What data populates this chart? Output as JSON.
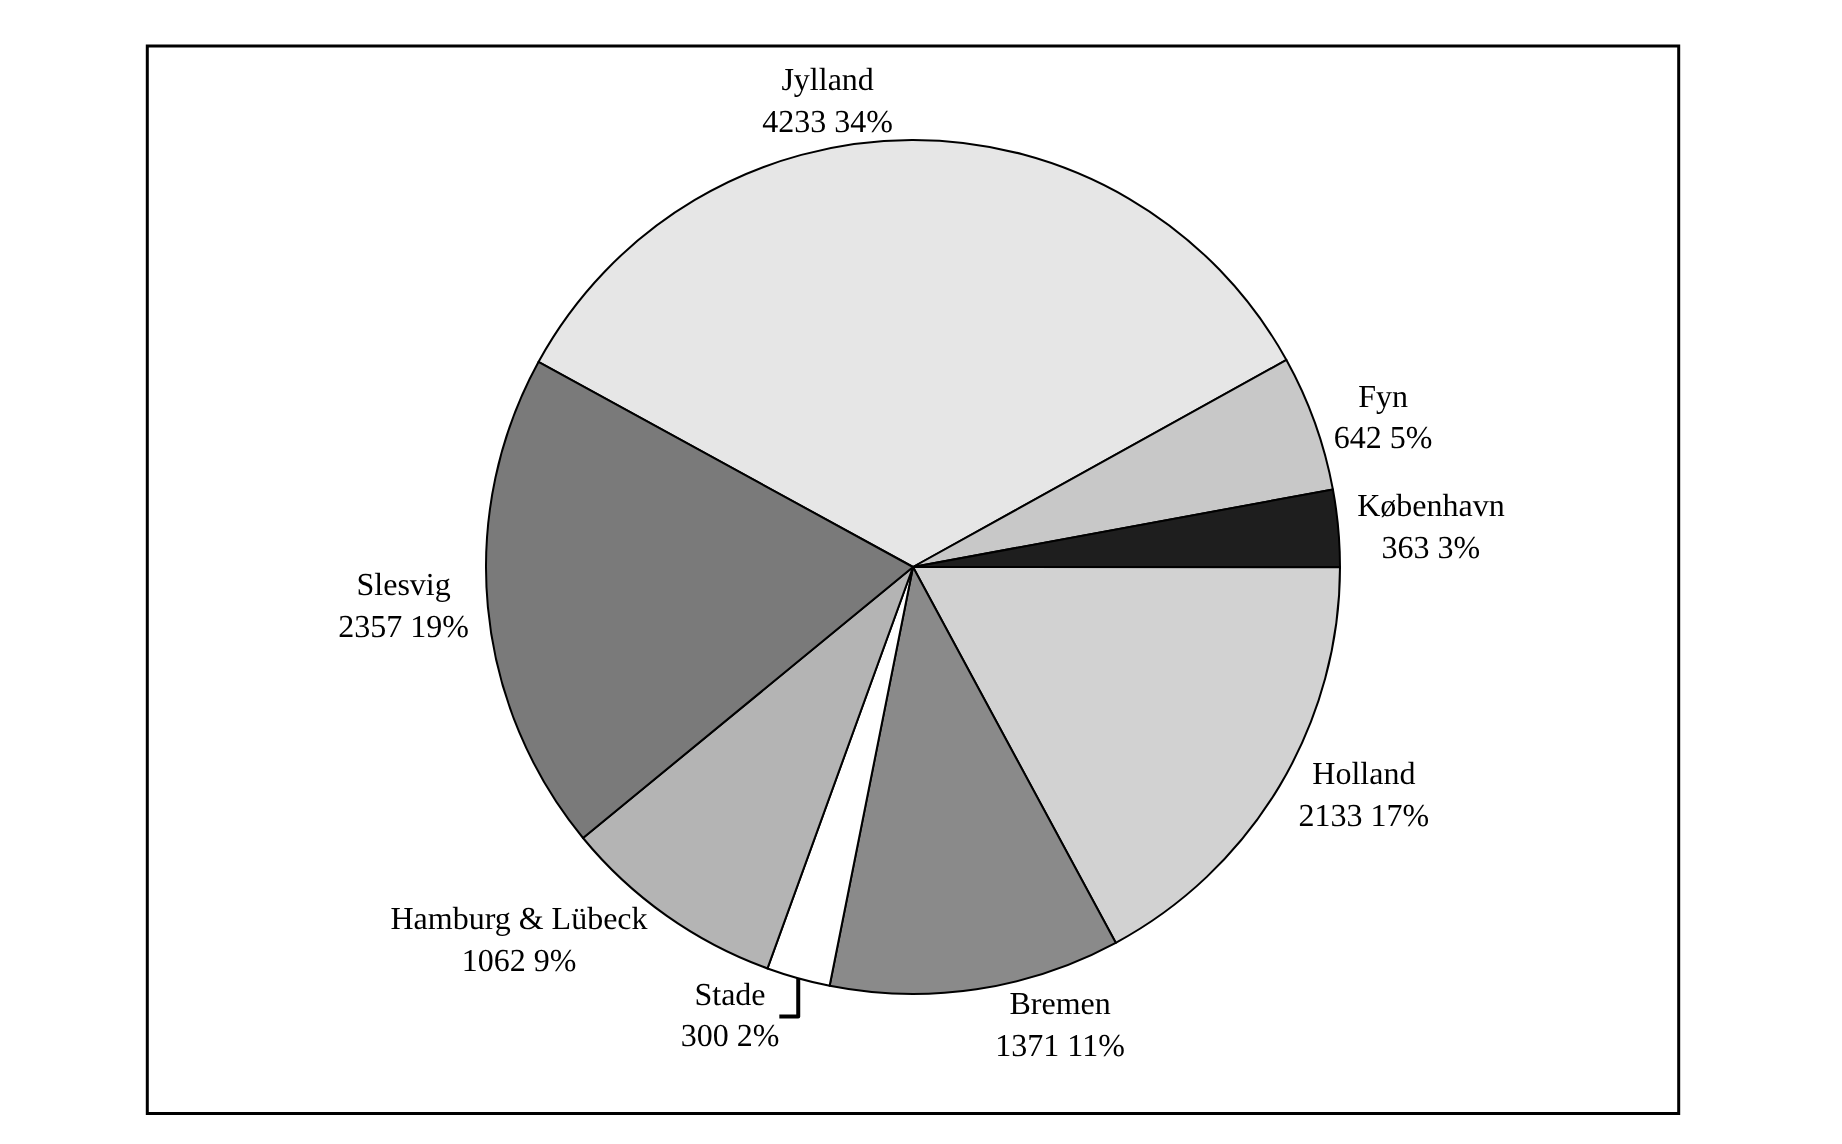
{
  "chart_data": {
    "type": "pie",
    "categories": [
      "Jylland",
      "Fyn",
      "København",
      "Holland",
      "Bremen",
      "Stade",
      "Hamburg & Lübeck",
      "Slesvig"
    ],
    "values": [
      4233,
      642,
      363,
      2133,
      1371,
      300,
      1062,
      2357
    ],
    "value_labels": [
      "4233 34%",
      "642 5%",
      "363 3%",
      "2133 17%",
      "1371 11%",
      "300 2%",
      "1062 9%",
      "2357 19%"
    ],
    "colors": [
      "#e6e6e6",
      "#c8c8c8",
      "#1e1e1e",
      "#d2d2d2",
      "#8a8a8a",
      "#ffffff",
      "#b4b4b4",
      "#7a7a7a"
    ],
    "legend": false
  }
}
